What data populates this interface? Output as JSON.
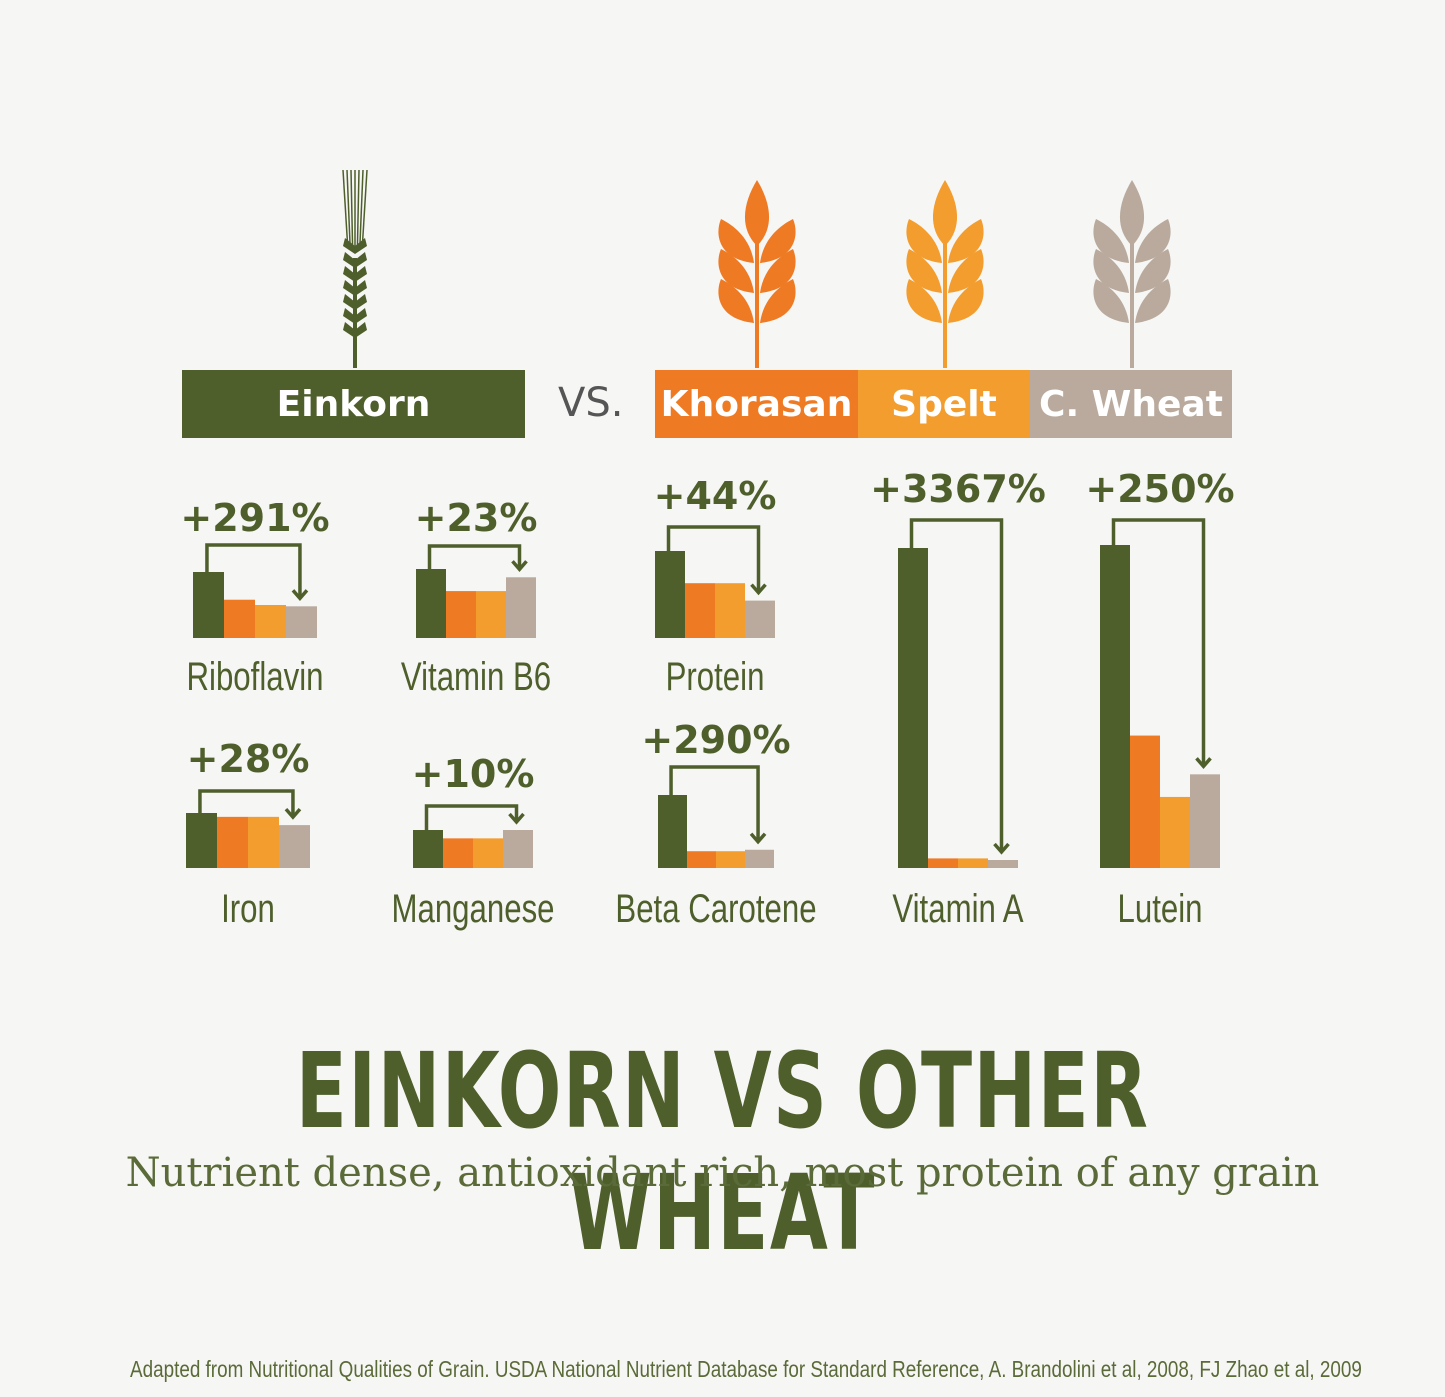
{
  "chart_data": {
    "type": "bar",
    "title": "EINKORN VS OTHER WHEAT",
    "subtitle": "Nutrient dense, antioxidant rich, most protein of any grain",
    "source": "Adapted from Nutritional Qualities of Grain. USDA National Nutrient Database for Standard Reference, A. Brandolini et al, 2008, FJ Zhao et al, 2009",
    "comparison": {
      "primary": "Einkorn",
      "vs_label": "VS.",
      "others": [
        "Khorasan",
        "Spelt",
        "C. Wheat"
      ]
    },
    "series": [
      {
        "name": "Einkorn",
        "color": "#4e5f2c"
      },
      {
        "name": "Khorasan",
        "color": "#ef7a24"
      },
      {
        "name": "Spelt",
        "color": "#f39d2e"
      },
      {
        "name": "C. Wheat",
        "color": "#b9aa9d"
      }
    ],
    "categories": [
      "Riboflavin",
      "Vitamin B6",
      "Protein",
      "Iron",
      "Manganese",
      "Beta Carotene",
      "Vitamin A",
      "Lutein"
    ],
    "groups": [
      {
        "name": "Riboflavin",
        "increase": "+291%",
        "values": [
          1.0,
          0.58,
          0.5,
          0.48
        ]
      },
      {
        "name": "Vitamin B6",
        "increase": "+23%",
        "values": [
          1.0,
          0.68,
          0.68,
          0.88
        ]
      },
      {
        "name": "Protein",
        "increase": "+44%",
        "values": [
          1.0,
          0.63,
          0.63,
          0.43
        ]
      },
      {
        "name": "Iron",
        "increase": "+28%",
        "values": [
          1.0,
          0.93,
          0.93,
          0.78
        ]
      },
      {
        "name": "Manganese",
        "increase": "+10%",
        "values": [
          1.0,
          0.78,
          0.78,
          1.0
        ]
      },
      {
        "name": "Beta Carotene",
        "increase": "+290%",
        "values": [
          1.0,
          0.23,
          0.23,
          0.25
        ]
      },
      {
        "name": "Vitamin A",
        "increase": "+3367%",
        "values": [
          1.0,
          0.03,
          0.03,
          0.025
        ]
      },
      {
        "name": "Lutein",
        "increase": "+250%",
        "values": [
          1.0,
          0.41,
          0.22,
          0.29
        ]
      }
    ]
  }
}
